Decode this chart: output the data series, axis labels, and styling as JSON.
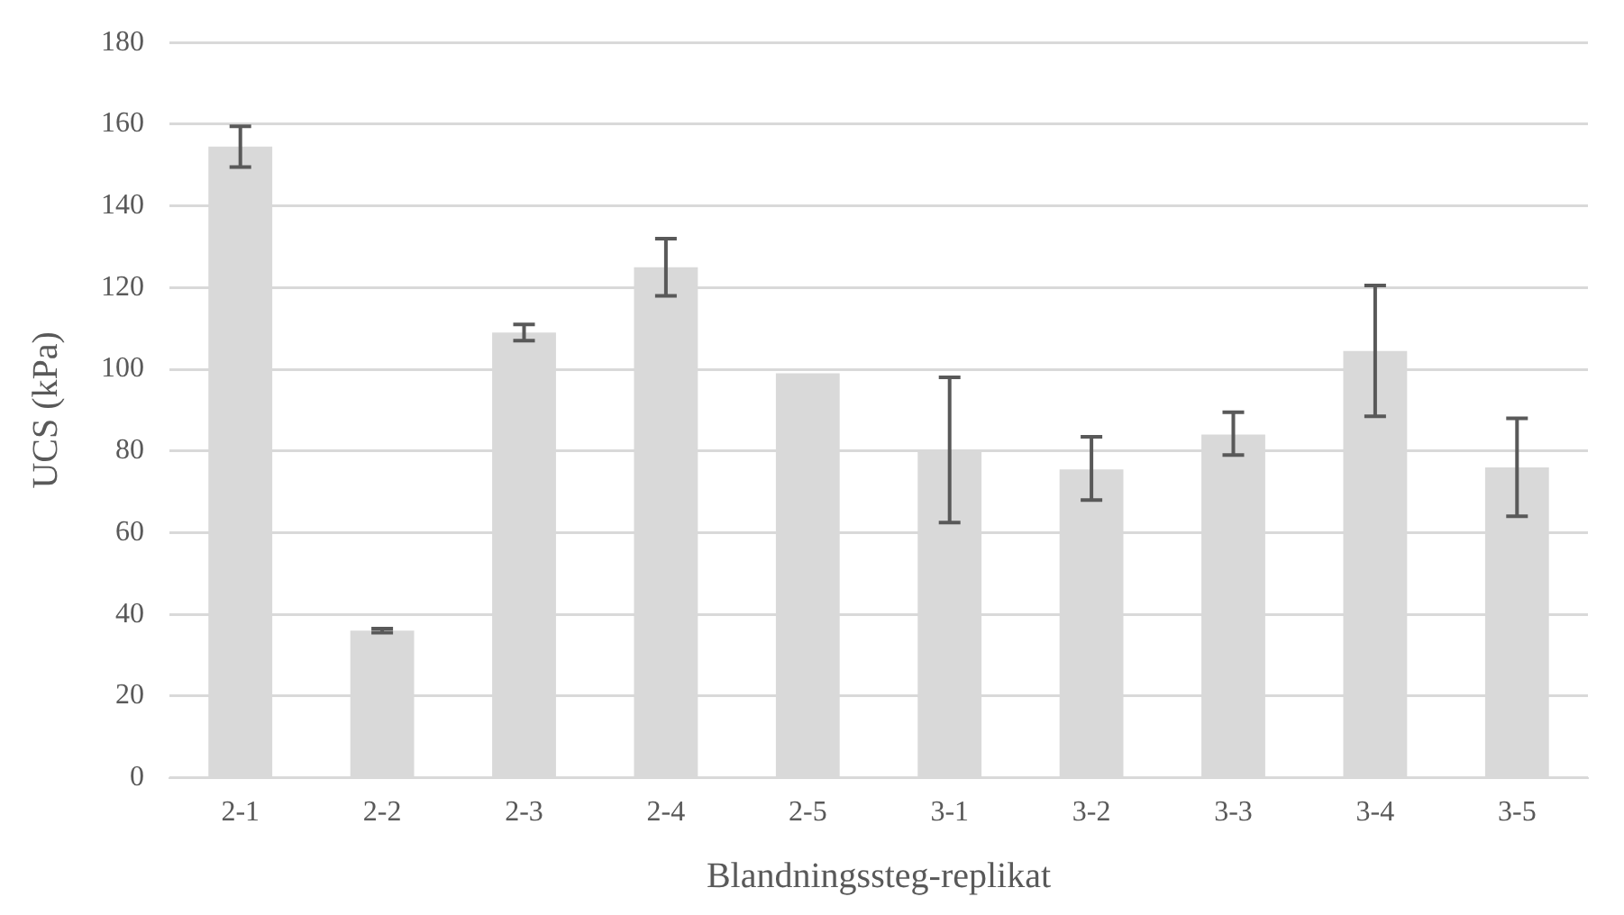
{
  "chart_data": {
    "type": "bar",
    "xlabel": "Blandningssteg-replikat",
    "ylabel": "UCS (kPa)",
    "categories": [
      "2-1",
      "2-2",
      "2-3",
      "2-4",
      "2-5",
      "3-1",
      "3-2",
      "3-3",
      "3-4",
      "3-5"
    ],
    "values": [
      154.5,
      36,
      109,
      125,
      99,
      80,
      75.5,
      84,
      104.5,
      76
    ],
    "errors": [
      [
        149.5,
        159.5
      ],
      [
        35.5,
        36.5
      ],
      [
        107,
        111
      ],
      [
        118,
        132
      ],
      null,
      [
        62.5,
        98
      ],
      [
        68,
        83.5
      ],
      [
        79,
        89.5
      ],
      [
        88.5,
        120.5
      ],
      [
        64,
        88
      ]
    ],
    "color": "#d9d9d9",
    "ylim": [
      0,
      180
    ],
    "yticks": [
      0,
      20,
      40,
      60,
      80,
      100,
      120,
      140,
      160,
      180
    ],
    "grid": "y",
    "legend": false
  }
}
